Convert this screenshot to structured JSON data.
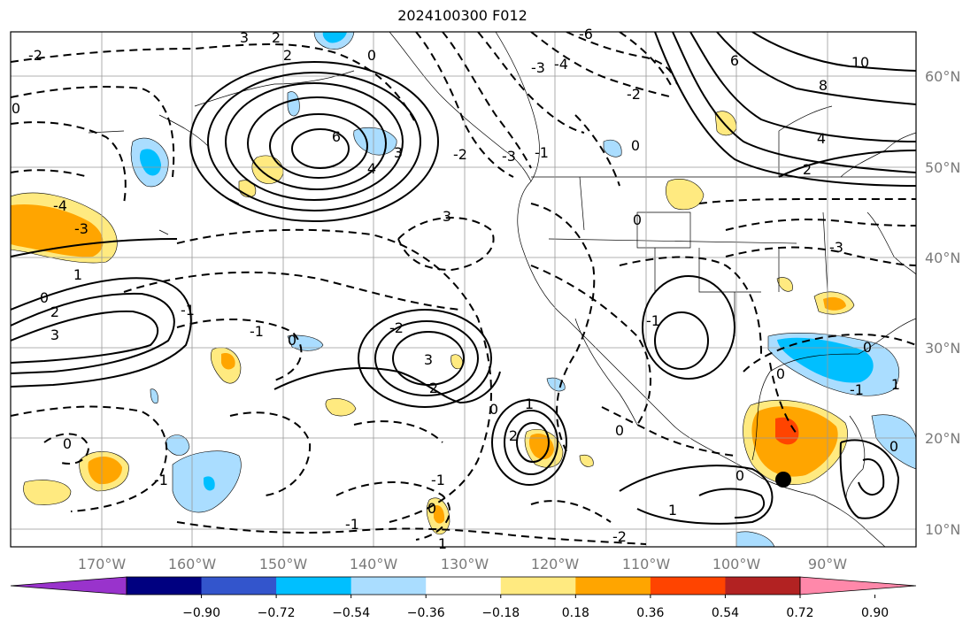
{
  "title": "2024100300 F012",
  "lat_labels": [
    "60°N",
    "50°N",
    "40°N",
    "30°N",
    "20°N",
    "10°N"
  ],
  "lon_labels": [
    "170°W",
    "160°W",
    "150°W",
    "140°W",
    "130°W",
    "120°W",
    "110°W",
    "100°W",
    "90°W"
  ],
  "colorbar": {
    "colors": [
      "#9933cc",
      "#000080",
      "#3355cc",
      "#00bfff",
      "#aaddff",
      "#ffffff",
      "#ffea80",
      "#ffa500",
      "#ff4400",
      "#b22222",
      "#ff88aa"
    ],
    "tick_labels": [
      "−0.90",
      "−0.72",
      "−0.54",
      "−0.36",
      "−0.18",
      "0.18",
      "0.36",
      "0.54",
      "0.72",
      "0.90"
    ]
  },
  "contour_labels": [
    "2",
    "3",
    "-2",
    "2",
    "0",
    "-6",
    "-3",
    "-4",
    "6",
    "10",
    "8",
    "4",
    "2",
    "0",
    "-2",
    "0",
    "6",
    "4",
    "3",
    "-2",
    "-3",
    "-4",
    "-3",
    "3",
    "1",
    "0",
    "2",
    "3",
    "-1",
    "0",
    "-2",
    "-1",
    "3",
    "2",
    "1",
    "2",
    "0",
    "-3",
    "-1",
    "0",
    "-1",
    "1",
    "0",
    "1",
    "0",
    "-1",
    "-2",
    "0",
    "-1",
    "-1",
    "0",
    "1",
    "0",
    "0",
    "-1",
    "0"
  ],
  "marker": "storm-center"
}
